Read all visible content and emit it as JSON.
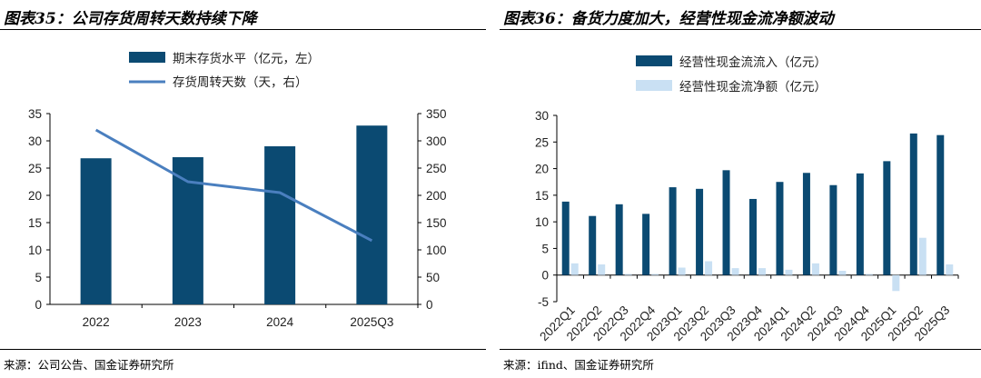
{
  "colors": {
    "navy": "#0b4a72",
    "line_blue": "#4a7fbf",
    "light_blue": "#c9e0f3"
  },
  "left_panel": {
    "title": "图表35：公司存货周转天数持续下降",
    "source": "来源：公司公告、国金证券研究所"
  },
  "right_panel": {
    "title": "图表36：备货力度加大，经营性现金流净额波动",
    "source": "来源：ifind、国金证券研究所"
  },
  "chart_data": [
    {
      "type": "bar+line",
      "title": "图表35：公司存货周转天数持续下降",
      "categories": [
        "2022",
        "2023",
        "2024",
        "2025Q3"
      ],
      "series": [
        {
          "name": "期末存货水平（亿元，左）",
          "kind": "bar",
          "axis": "left",
          "color": "#0b4a72",
          "values": [
            26.8,
            27.0,
            29.0,
            32.8
          ]
        },
        {
          "name": "存货周转天数（天，右）",
          "kind": "line",
          "axis": "right",
          "color": "#4a7fbf",
          "values": [
            320,
            225,
            205,
            117
          ]
        }
      ],
      "ylim_left": [
        0,
        35
      ],
      "yticks_left": [
        0,
        5,
        10,
        15,
        20,
        25,
        30,
        35
      ],
      "ylim_right": [
        0,
        350
      ],
      "yticks_right": [
        0,
        50,
        100,
        150,
        200,
        250,
        300,
        350
      ],
      "legend_position": "top-center",
      "grid": false
    },
    {
      "type": "bar",
      "title": "图表36：备货力度加大，经营性现金流净额波动",
      "categories": [
        "2022Q1",
        "2022Q2",
        "2022Q3",
        "2022Q4",
        "2023Q1",
        "2023Q2",
        "2023Q3",
        "2023Q4",
        "2024Q1",
        "2024Q2",
        "2024Q3",
        "2024Q4",
        "2025Q1",
        "2025Q2",
        "2025Q3"
      ],
      "series": [
        {
          "name": "经营性现金流流入（亿元）",
          "color": "#0b4a72",
          "values": [
            13.8,
            11.1,
            13.3,
            11.5,
            16.5,
            16.2,
            19.7,
            14.3,
            17.5,
            19.2,
            16.9,
            19.1,
            21.4,
            26.6,
            26.3
          ]
        },
        {
          "name": "经营性现金流净额（亿元）",
          "color": "#c9e0f3",
          "values": [
            2.2,
            2.0,
            0.2,
            0.2,
            1.4,
            2.6,
            1.3,
            1.3,
            1.0,
            2.2,
            0.8,
            0.2,
            -3.0,
            7.0,
            2.0
          ]
        }
      ],
      "ylim": [
        -5,
        30
      ],
      "yticks": [
        -5,
        0,
        5,
        10,
        15,
        20,
        25,
        30
      ],
      "legend_position": "top-center",
      "grid": false
    }
  ]
}
